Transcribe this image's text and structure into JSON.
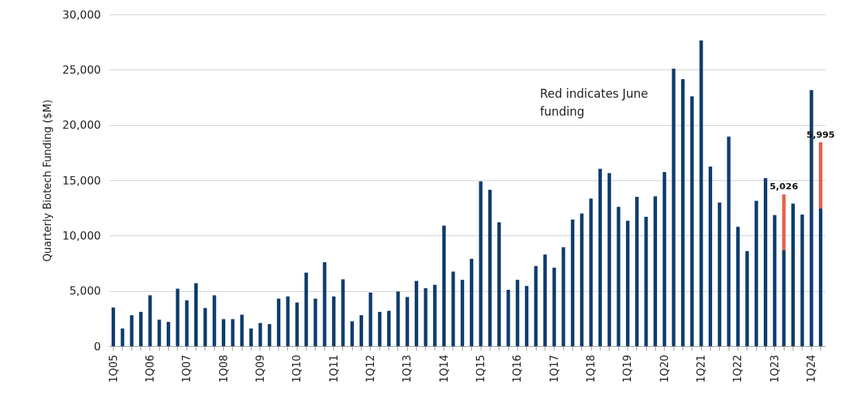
{
  "chart_data": {
    "type": "bar",
    "ylabel": "Quarterly Biotech Funding ($M)",
    "categories": [
      "1Q05",
      null,
      null,
      null,
      "1Q06",
      null,
      null,
      null,
      "1Q07",
      null,
      null,
      null,
      "1Q08",
      null,
      null,
      null,
      "1Q09",
      null,
      null,
      null,
      "1Q10",
      null,
      null,
      null,
      "1Q11",
      null,
      null,
      null,
      "1Q12",
      null,
      null,
      null,
      "1Q13",
      null,
      null,
      null,
      "1Q14",
      null,
      null,
      null,
      "1Q15",
      null,
      null,
      null,
      "1Q16",
      null,
      null,
      null,
      "1Q17",
      null,
      null,
      null,
      "1Q18",
      null,
      null,
      null,
      "1Q19",
      null,
      null,
      null,
      "1Q20",
      null,
      null,
      null,
      "1Q21",
      null,
      null,
      null,
      "1Q22",
      null,
      null,
      null,
      "1Q23",
      null,
      null,
      null,
      "1Q24",
      null
    ],
    "stacked": true,
    "series": [
      {
        "color": "#0f3d6e",
        "values": [
          3500,
          1600,
          2800,
          3100,
          4600,
          2400,
          2200,
          5200,
          4150,
          5700,
          3450,
          4600,
          2450,
          2450,
          2850,
          1600,
          2100,
          2000,
          4300,
          4500,
          3950,
          6650,
          4300,
          7600,
          4500,
          6050,
          2250,
          2800,
          4850,
          3100,
          3200,
          4950,
          4450,
          5900,
          5250,
          5550,
          10900,
          6750,
          6000,
          7900,
          14900,
          14150,
          11200,
          5100,
          6000,
          5450,
          7250,
          8300,
          7100,
          8950,
          11450,
          12000,
          13350,
          16050,
          15650,
          12600,
          11350,
          13500,
          11700,
          13550,
          15750,
          25100,
          24150,
          22600,
          27650,
          16250,
          13000,
          18950,
          10800,
          8600,
          13150,
          15200,
          11850,
          8700,
          12900,
          11900,
          23150,
          12450
        ]
      },
      {
        "color": "#e8604c",
        "values": [
          null,
          null,
          null,
          null,
          null,
          null,
          null,
          null,
          null,
          null,
          null,
          null,
          null,
          null,
          null,
          null,
          null,
          null,
          null,
          null,
          null,
          null,
          null,
          null,
          null,
          null,
          null,
          null,
          null,
          null,
          null,
          null,
          null,
          null,
          null,
          null,
          null,
          null,
          null,
          null,
          null,
          null,
          null,
          null,
          null,
          null,
          null,
          null,
          null,
          null,
          null,
          null,
          null,
          null,
          null,
          null,
          null,
          null,
          null,
          null,
          null,
          null,
          null,
          null,
          null,
          null,
          null,
          null,
          null,
          null,
          null,
          null,
          null,
          5026,
          null,
          null,
          null,
          5995
        ],
        "value_labels": [
          null,
          null,
          null,
          null,
          null,
          null,
          null,
          null,
          null,
          null,
          null,
          null,
          null,
          null,
          null,
          null,
          null,
          null,
          null,
          null,
          null,
          null,
          null,
          null,
          null,
          null,
          null,
          null,
          null,
          null,
          null,
          null,
          null,
          null,
          null,
          null,
          null,
          null,
          null,
          null,
          null,
          null,
          null,
          null,
          null,
          null,
          null,
          null,
          null,
          null,
          null,
          null,
          null,
          null,
          null,
          null,
          null,
          null,
          null,
          null,
          null,
          null,
          null,
          null,
          null,
          null,
          null,
          null,
          null,
          null,
          null,
          null,
          null,
          "5,026",
          null,
          null,
          null,
          "5,995"
        ]
      }
    ],
    "ylim": [
      0,
      30000
    ],
    "yticks": [
      0,
      {
        "value": 5000,
        "label": "5,000"
      },
      {
        "value": 10000,
        "label": "10,000"
      },
      {
        "value": 15000,
        "label": "15,000"
      },
      {
        "value": 20000,
        "label": "20,000"
      },
      {
        "value": 25000,
        "label": "25,000"
      },
      {
        "value": 30000,
        "label": "30,000"
      }
    ],
    "grid": "y",
    "annotations": [
      "Red indicates June funding"
    ]
  }
}
